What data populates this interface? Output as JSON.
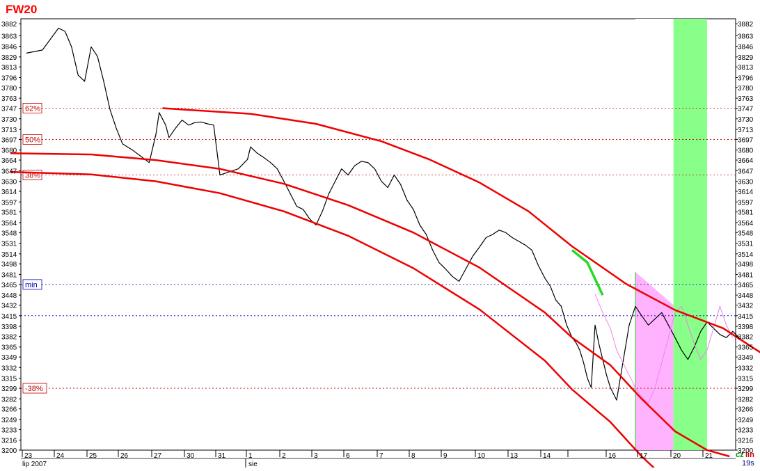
{
  "chart_data": {
    "type": "line",
    "title": "FW20",
    "y_range": [
      3200,
      3890
    ],
    "y_ticks": [
      3882,
      3863,
      3846,
      3829,
      3813,
      3796,
      3780,
      3763,
      3747,
      3730,
      3713,
      3697,
      3680,
      3664,
      3647,
      3630,
      3614,
      3597,
      3581,
      3564,
      3548,
      3531,
      3514,
      3498,
      3481,
      3465,
      3448,
      3432,
      3415,
      3398,
      3382,
      3365,
      3349,
      3332,
      3315,
      3299,
      3282,
      3266,
      3249,
      3233,
      3216,
      3200
    ],
    "x_day_labels": [
      "23",
      "24",
      "25",
      "26",
      "27",
      "30",
      "31",
      "1",
      "2",
      "3",
      "6",
      "7",
      "8",
      "9",
      "10",
      "13",
      "14",
      "",
      "16",
      "17",
      "20",
      "21"
    ],
    "x_month_labels": [
      "lip 2007",
      "sie"
    ],
    "levels": [
      {
        "label": "62%",
        "value": 3747,
        "color": "#c00000"
      },
      {
        "label": "50%",
        "value": 3697,
        "color": "#c00000"
      },
      {
        "label": "38%",
        "value": 3640,
        "color": "#c00000"
      },
      {
        "label": "min",
        "value": 3465,
        "color": "#0000c0"
      },
      {
        "label": "",
        "value": 3415,
        "color": "#0000c0"
      },
      {
        "label": "-38%",
        "value": 3299,
        "color": "#c00000"
      }
    ],
    "series": [
      {
        "role": "price",
        "color": "#000000",
        "x": [
          0,
          0.5,
          1,
          1.2,
          1.4,
          1.6,
          1.8,
          2,
          2.2,
          2.4,
          2.6,
          2.8,
          3,
          3.3,
          3.6,
          3.8,
          4,
          4.1,
          4.2,
          4.3,
          4.4,
          4.6,
          4.8,
          5,
          5.2,
          5.4,
          5.6,
          5.8,
          6,
          6.3,
          6.6,
          6.9,
          7,
          7.2,
          7.4,
          7.6,
          7.8,
          8,
          8.2,
          8.4,
          8.6,
          8.8,
          9,
          9.2,
          9.4,
          9.6,
          9.8,
          10,
          10.2,
          10.4,
          10.6,
          10.8,
          11,
          11.2,
          11.4,
          11.6,
          11.8,
          12,
          12.2,
          12.4,
          12.6,
          12.8,
          13,
          13.2,
          13.4,
          13.6,
          13.8,
          14,
          14.2,
          14.4,
          14.6,
          14.8,
          15,
          15.2,
          15.4,
          15.6,
          15.8,
          16,
          16.2,
          16.4,
          16.6,
          16.8,
          17,
          17.1,
          17.2,
          17.3,
          17.4,
          17.5,
          17.6,
          17.7,
          17.8,
          17.9,
          18,
          18.2,
          18.4,
          18.6,
          18.8,
          19,
          19.2,
          19.4,
          19.6,
          19.8,
          20,
          20.2,
          20.4,
          20.6,
          20.8,
          21,
          21.2,
          21.4,
          21.6,
          21.8,
          22
        ],
        "y": [
          3835,
          3840,
          3875,
          3870,
          3845,
          3800,
          3790,
          3845,
          3830,
          3790,
          3745,
          3715,
          3690,
          3680,
          3668,
          3660,
          3705,
          3740,
          3730,
          3720,
          3700,
          3715,
          3728,
          3720,
          3724,
          3725,
          3722,
          3720,
          3640,
          3645,
          3650,
          3665,
          3685,
          3675,
          3668,
          3660,
          3650,
          3630,
          3610,
          3590,
          3585,
          3570,
          3560,
          3582,
          3610,
          3630,
          3650,
          3640,
          3655,
          3662,
          3660,
          3650,
          3630,
          3620,
          3640,
          3625,
          3600,
          3585,
          3560,
          3545,
          3520,
          3500,
          3490,
          3478,
          3470,
          3490,
          3510,
          3525,
          3540,
          3545,
          3552,
          3548,
          3540,
          3534,
          3528,
          3520,
          3495,
          3475,
          3462,
          3440,
          3430,
          3400,
          3380,
          3372,
          3360,
          3340,
          3315,
          3300,
          3400,
          3370,
          3345,
          3320,
          3300,
          3280,
          3340,
          3400,
          3430,
          3415,
          3400,
          3410,
          3420,
          3400,
          3380,
          3360,
          3345,
          3365,
          3390,
          3405,
          3395,
          3385,
          3380,
          3390,
          3380
        ]
      },
      {
        "role": "overlay",
        "color": "#ee82ee",
        "x": [
          17.6,
          17.8,
          18,
          18.2,
          18.4,
          18.6,
          18.8,
          19,
          19.2,
          19.4,
          19.6,
          19.8,
          20,
          20.2,
          20.4,
          20.6,
          20.8,
          21,
          21.2,
          21.4,
          21.6,
          21.8
        ],
        "y": [
          3450,
          3420,
          3395,
          3360,
          3340,
          3320,
          3300,
          3285,
          3275,
          3300,
          3340,
          3380,
          3420,
          3430,
          3400,
          3370,
          3345,
          3360,
          3395,
          3430,
          3400,
          3380
        ]
      },
      {
        "role": "segment",
        "color": "#22dd22",
        "x": [
          17.0,
          17.4,
          17.8
        ],
        "y": [
          3520,
          3500,
          3448
        ]
      },
      {
        "role": "channel",
        "color": "#ee0000",
        "x": [
          4.2,
          7,
          9,
          11,
          12.5,
          14,
          15.5,
          17,
          18.5,
          20,
          21.5,
          23
        ],
        "y": [
          3747,
          3738,
          3722,
          3694,
          3665,
          3628,
          3582,
          3526,
          3466,
          3424,
          3395,
          3345
        ]
      },
      {
        "role": "channel",
        "color": "#ee0000",
        "x": [
          -0.5,
          2,
          4,
          6,
          8,
          10,
          12,
          14,
          16,
          17,
          18,
          19,
          20,
          21,
          21.7
        ],
        "y": [
          3675,
          3673,
          3664,
          3650,
          3626,
          3592,
          3548,
          3492,
          3420,
          3380,
          3336,
          3282,
          3230,
          3200,
          3190
        ]
      },
      {
        "role": "channel",
        "color": "#ee0000",
        "x": [
          -0.5,
          2,
          4,
          6,
          8,
          10,
          12,
          14,
          16,
          17,
          18,
          19,
          19.8
        ],
        "y": [
          3645,
          3641,
          3630,
          3611,
          3582,
          3543,
          3491,
          3425,
          3343,
          3297,
          3245,
          3190,
          3150
        ]
      }
    ],
    "shaded_regions": [
      {
        "x_from": 18.8,
        "x_to": 19.95,
        "color": "#ffb3ff"
      },
      {
        "x_from": 19.95,
        "x_to": 21.0,
        "color": "#88ff88"
      }
    ],
    "green_marker_x": 18.8,
    "corner_labels": [
      "cz",
      "lin",
      "19s"
    ],
    "grid": false
  }
}
